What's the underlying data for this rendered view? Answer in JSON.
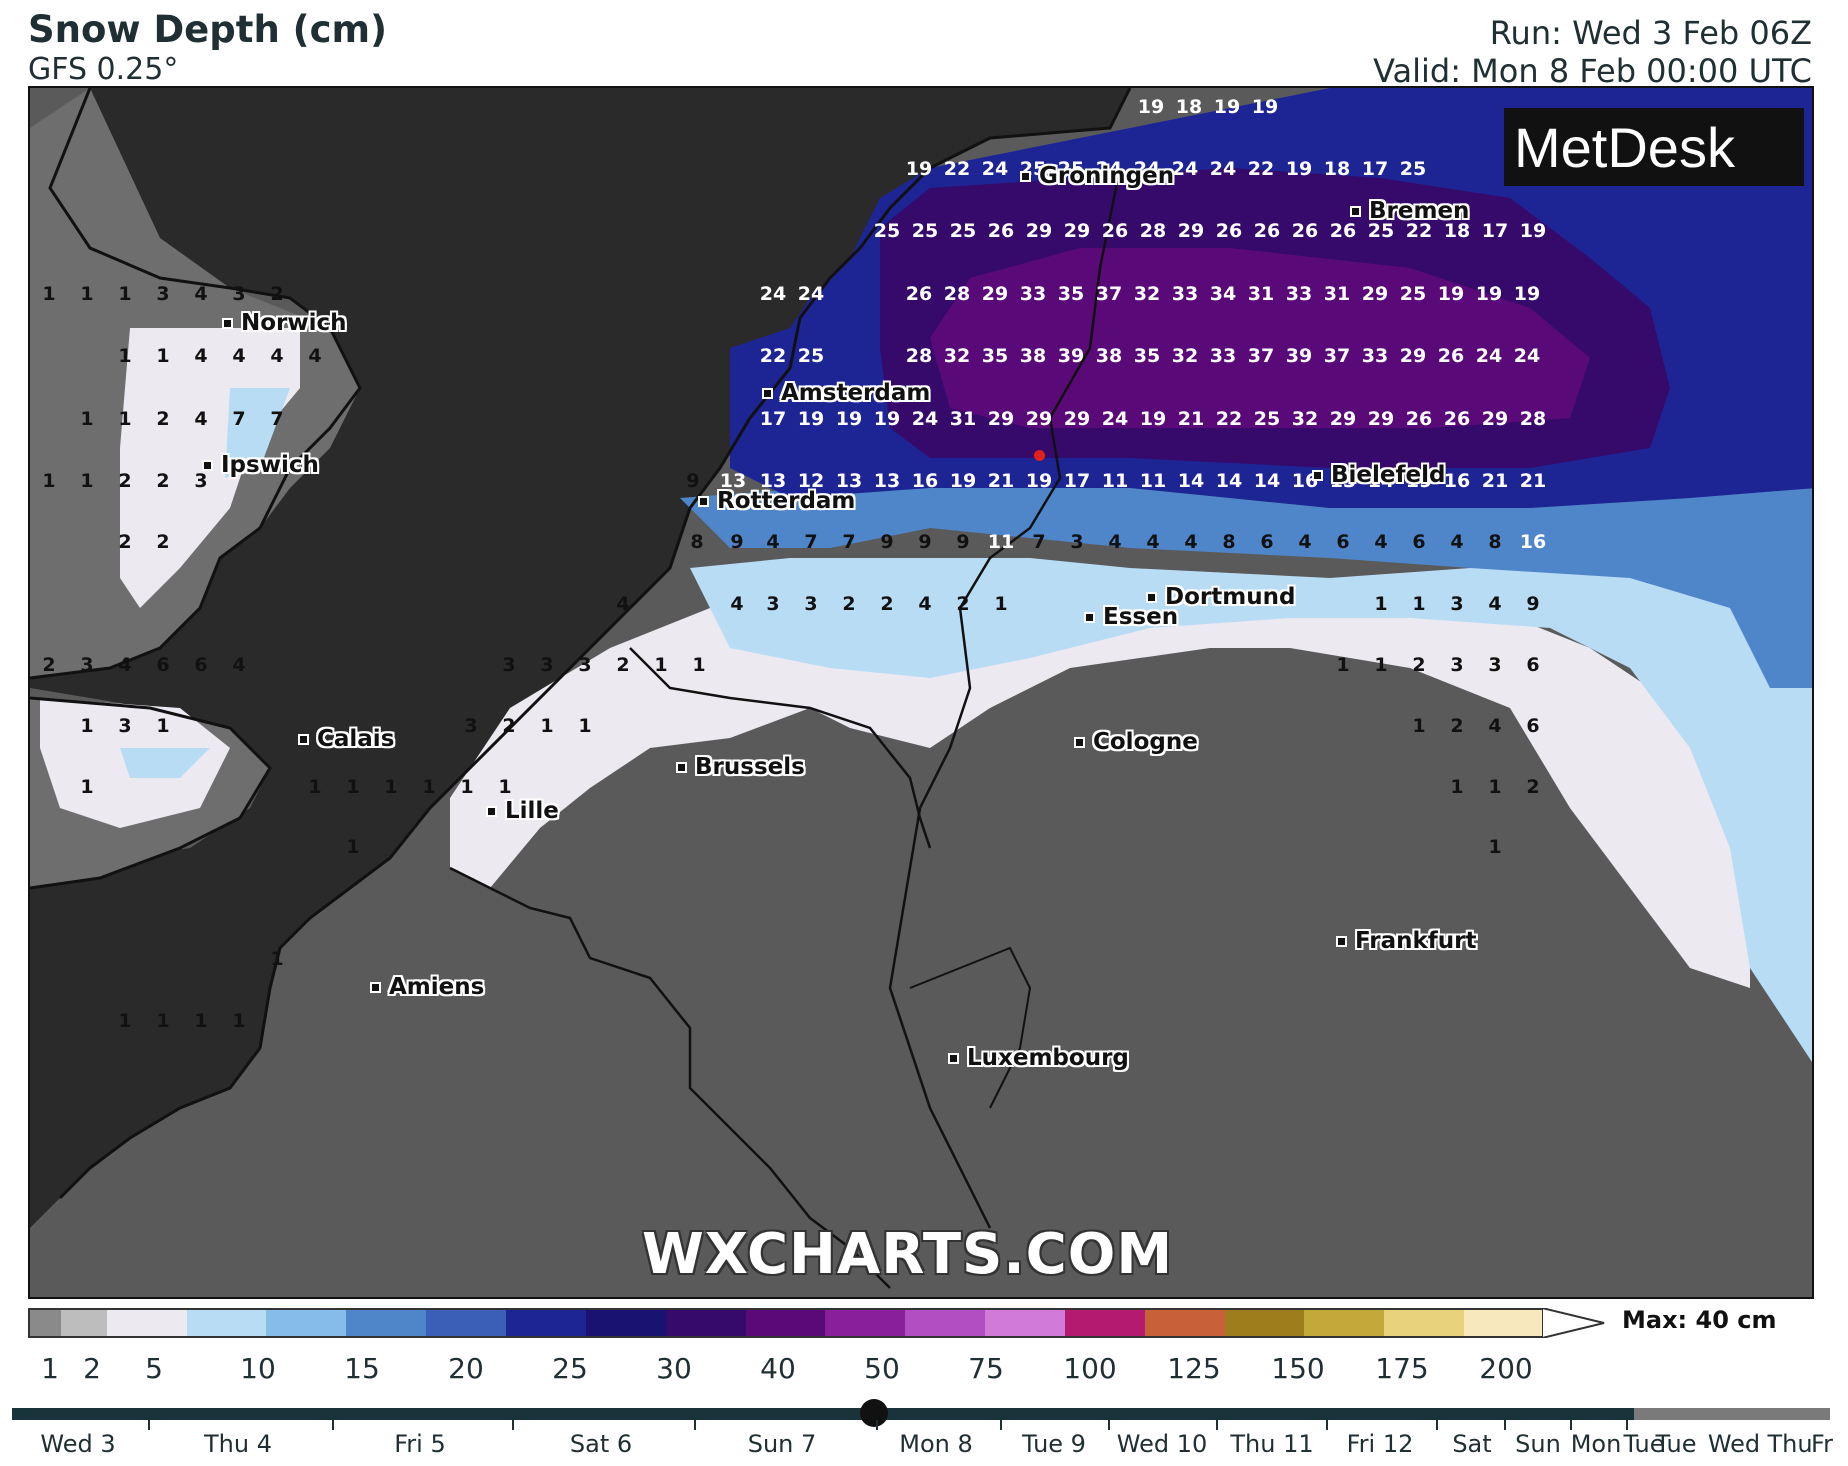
{
  "header": {
    "title": "Snow Depth (cm)",
    "model": "GFS 0.25°",
    "run": "Run: Wed 3 Feb 06Z",
    "valid": "Valid: Mon 8 Feb 00:00 UTC"
  },
  "brand": {
    "logo_text": "MetDesk",
    "watermark": "WXCHARTS.COM"
  },
  "map": {
    "cities": [
      {
        "name": "Groningen"
      },
      {
        "name": "Bremen"
      },
      {
        "name": "Norwich"
      },
      {
        "name": "Amsterdam"
      },
      {
        "name": "Ipswich"
      },
      {
        "name": "Rotterdam"
      },
      {
        "name": "Bielefeld"
      },
      {
        "name": "Dortmund"
      },
      {
        "name": "Essen"
      },
      {
        "name": "Calais"
      },
      {
        "name": "Brussels"
      },
      {
        "name": "Cologne"
      },
      {
        "name": "Lille"
      },
      {
        "name": "Frankfurt"
      },
      {
        "name": "Amiens"
      },
      {
        "name": "Luxembourg"
      }
    ],
    "depth_rows": [
      [
        "19",
        "18",
        "19",
        "19"
      ],
      [
        "19",
        "22",
        "24",
        "25",
        "25",
        "24",
        "24",
        "24",
        "24",
        "22",
        "19",
        "18",
        "17",
        "25"
      ],
      [
        "25",
        "25",
        "25",
        "26",
        "29",
        "29",
        "26",
        "28",
        "29",
        "26",
        "26",
        "26",
        "26",
        "25",
        "22",
        "18",
        "17",
        "19"
      ],
      [
        "1",
        "1",
        "1",
        "3",
        "4",
        "3",
        "2",
        "24",
        "24",
        "26",
        "28",
        "29",
        "33",
        "35",
        "37",
        "32",
        "33",
        "34",
        "31",
        "33",
        "31",
        "29",
        "25",
        "19",
        "19",
        "19"
      ],
      [
        "1",
        "1",
        "4",
        "4",
        "4",
        "4",
        "22",
        "25",
        "28",
        "32",
        "35",
        "38",
        "39",
        "38",
        "35",
        "32",
        "33",
        "37",
        "39",
        "37",
        "33",
        "29",
        "26",
        "24",
        "24"
      ],
      [
        "1",
        "1",
        "2",
        "4",
        "7",
        "7",
        "17",
        "19",
        "19",
        "19",
        "24",
        "31",
        "29",
        "29",
        "29",
        "24",
        "19",
        "21",
        "22",
        "25",
        "32",
        "29",
        "29",
        "26",
        "26",
        "29",
        "28"
      ],
      [
        "1",
        "1",
        "2",
        "2",
        "3",
        "9",
        "13",
        "13",
        "12",
        "13",
        "13",
        "16",
        "19",
        "21",
        "19",
        "17",
        "11",
        "11",
        "14",
        "14",
        "14",
        "16",
        "13",
        "14",
        "19",
        "16",
        "21",
        "21"
      ],
      [
        "2",
        "2",
        "8",
        "9",
        "4",
        "7",
        "7",
        "9",
        "9",
        "9",
        "11",
        "7",
        "3",
        "4",
        "4",
        "4",
        "8",
        "6",
        "4",
        "6",
        "4",
        "6",
        "4",
        "8",
        "16"
      ],
      [
        "4",
        "4",
        "3",
        "3",
        "2",
        "2",
        "4",
        "2",
        "1",
        "1",
        "1",
        "3",
        "4",
        "9"
      ],
      [
        "2",
        "3",
        "4",
        "6",
        "6",
        "4",
        "3",
        "3",
        "3",
        "2",
        "1",
        "1",
        "1",
        "1",
        "2",
        "3",
        "3",
        "6"
      ],
      [
        "1",
        "3",
        "1",
        "3",
        "2",
        "1",
        "1",
        "1",
        "2",
        "4",
        "6"
      ],
      [
        "1",
        "1",
        "1",
        "1",
        "1",
        "1",
        "1",
        "1",
        "1",
        "2",
        "1"
      ],
      [
        "1",
        "1"
      ],
      [
        "1"
      ],
      [
        "1",
        "1",
        "1",
        "1"
      ]
    ]
  },
  "legend": {
    "colors": [
      "#8a8a8a",
      "#bdbdbd",
      "#ece9f1",
      "#b9dcf5",
      "#85bce8",
      "#4f86c9",
      "#3b5fb5",
      "#1d2494",
      "#1a1270",
      "#360a6b",
      "#5a0a78",
      "#8a1f9c",
      "#b04ec2",
      "#d17ad9",
      "#b31a70",
      "#c8603a",
      "#9e7d1c",
      "#c3a83a",
      "#e8d27c",
      "#f8e8bd"
    ],
    "ticks": [
      "1",
      "2",
      "5",
      "10",
      "15",
      "20",
      "25",
      "30",
      "40",
      "50",
      "75",
      "100",
      "125",
      "150",
      "175",
      "200"
    ],
    "max_label": "Max: 40 cm"
  },
  "timeline": {
    "days": [
      "Wed 3",
      "Thu 4",
      "Fri 5",
      "Sat 6",
      "Sun 7",
      "Mon 8",
      "Tue 9",
      "Wed 10",
      "Thu 11",
      "Fri 12",
      "Sat",
      "Sun",
      "Mon",
      "Tue",
      "Tue",
      "Wed",
      "Thu",
      "Fr"
    ],
    "selected": "Mon 8"
  }
}
